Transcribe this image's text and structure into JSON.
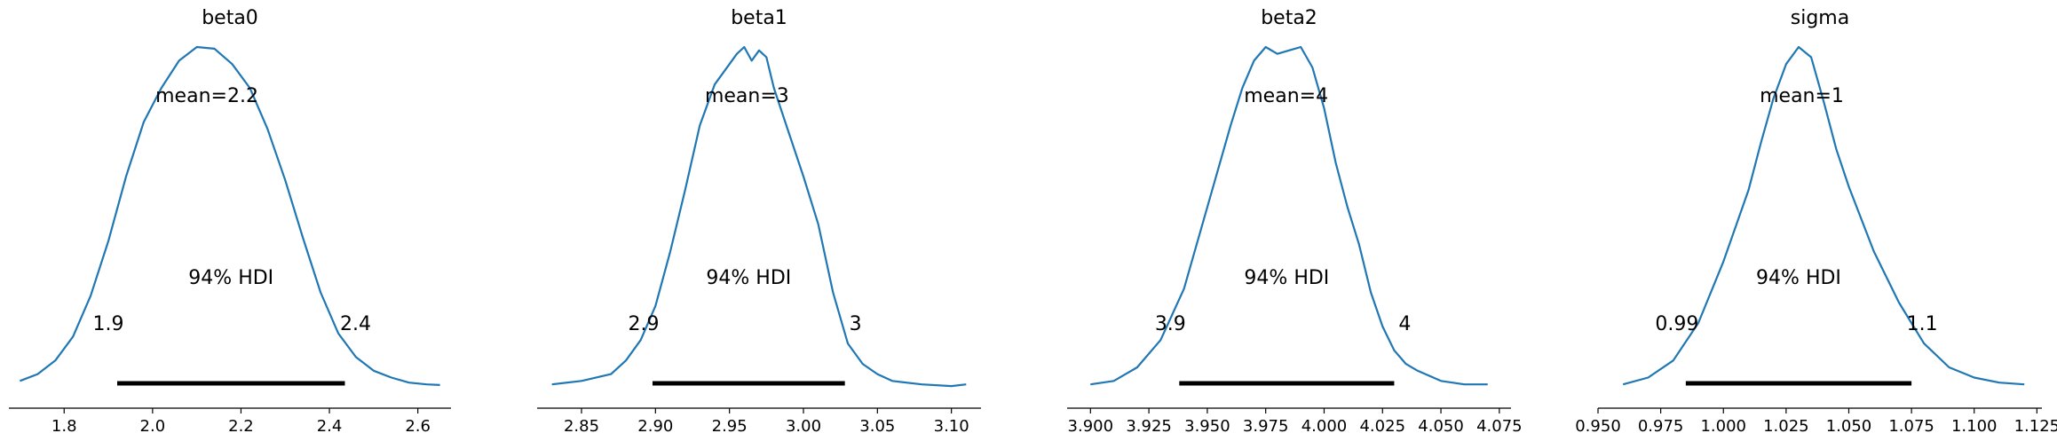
{
  "chart_data": [
    {
      "type": "area",
      "title": "beta0",
      "mean_label": "mean=2.2",
      "hdi_label": "94% HDI",
      "hdi_low_label": "1.9",
      "hdi_high_label": "2.4",
      "hdi": [
        1.92,
        2.435
      ],
      "xlim": [
        1.675,
        2.675
      ],
      "xticks": [
        1.8,
        2.0,
        2.2,
        2.4,
        2.6
      ],
      "xtick_labels": [
        "1.8",
        "2.0",
        "2.2",
        "2.4",
        "2.6"
      ],
      "x": [
        1.7,
        1.74,
        1.78,
        1.82,
        1.86,
        1.9,
        1.94,
        1.98,
        2.02,
        2.06,
        2.1,
        2.14,
        2.18,
        2.22,
        2.26,
        2.3,
        2.34,
        2.38,
        2.42,
        2.46,
        2.5,
        2.54,
        2.58,
        2.62,
        2.65
      ],
      "density": [
        0.02,
        0.04,
        0.08,
        0.15,
        0.27,
        0.43,
        0.62,
        0.78,
        0.88,
        0.96,
        1.0,
        0.995,
        0.95,
        0.88,
        0.76,
        0.61,
        0.44,
        0.28,
        0.16,
        0.09,
        0.05,
        0.03,
        0.015,
        0.01,
        0.008
      ]
    },
    {
      "type": "area",
      "title": "beta1",
      "mean_label": "mean=3",
      "hdi_label": "94% HDI",
      "hdi_low_label": "2.9",
      "hdi_high_label": "3",
      "hdi": [
        2.898,
        3.028
      ],
      "xlim": [
        2.82,
        3.12
      ],
      "xticks": [
        2.85,
        2.9,
        2.95,
        3.0,
        3.05,
        3.1
      ],
      "xtick_labels": [
        "2.85",
        "2.90",
        "2.95",
        "3.00",
        "3.05",
        "3.10"
      ],
      "x": [
        2.83,
        2.85,
        2.87,
        2.88,
        2.89,
        2.9,
        2.91,
        2.92,
        2.93,
        2.94,
        2.95,
        2.955,
        2.96,
        2.965,
        2.97,
        2.975,
        2.98,
        2.99,
        3.0,
        3.01,
        3.02,
        3.03,
        3.04,
        3.05,
        3.06,
        3.08,
        3.1,
        3.11
      ],
      "density": [
        0.01,
        0.02,
        0.04,
        0.08,
        0.14,
        0.24,
        0.4,
        0.58,
        0.77,
        0.89,
        0.95,
        0.98,
        1.0,
        0.96,
        0.99,
        0.97,
        0.88,
        0.75,
        0.62,
        0.48,
        0.28,
        0.13,
        0.07,
        0.04,
        0.02,
        0.01,
        0.005,
        0.01
      ]
    },
    {
      "type": "area",
      "title": "beta2",
      "mean_label": "mean=4",
      "hdi_label": "94% HDI",
      "hdi_low_label": "3.9",
      "hdi_high_label": "4",
      "hdi": [
        3.938,
        4.03
      ],
      "xlim": [
        3.89,
        4.08
      ],
      "xticks": [
        3.9,
        3.925,
        3.95,
        3.975,
        4.0,
        4.025,
        4.05,
        4.075
      ],
      "xtick_labels": [
        "3.900",
        "3.925",
        "3.950",
        "3.975",
        "4.000",
        "4.025",
        "4.050",
        "4.075"
      ],
      "x": [
        3.9,
        3.91,
        3.92,
        3.93,
        3.94,
        3.95,
        3.96,
        3.965,
        3.97,
        3.975,
        3.98,
        3.985,
        3.99,
        3.995,
        4.0,
        4.005,
        4.01,
        4.015,
        4.02,
        4.025,
        4.03,
        4.035,
        4.04,
        4.05,
        4.06,
        4.07
      ],
      "density": [
        0.01,
        0.02,
        0.06,
        0.14,
        0.29,
        0.53,
        0.77,
        0.88,
        0.96,
        1.0,
        0.98,
        0.99,
        1.0,
        0.94,
        0.82,
        0.66,
        0.53,
        0.42,
        0.28,
        0.18,
        0.11,
        0.07,
        0.05,
        0.02,
        0.01,
        0.01
      ]
    },
    {
      "type": "area",
      "title": "sigma",
      "mean_label": "mean=1",
      "hdi_label": "94% HDI",
      "hdi_low_label": "0.99",
      "hdi_high_label": "1.1",
      "hdi": [
        0.985,
        1.075
      ],
      "xlim": [
        0.95,
        1.127
      ],
      "xticks": [
        0.95,
        0.975,
        1.0,
        1.025,
        1.05,
        1.075,
        1.1,
        1.125
      ],
      "xtick_labels": [
        "0.950",
        "0.975",
        "1.000",
        "1.025",
        "1.050",
        "1.075",
        "1.100",
        "1.125"
      ],
      "x": [
        0.96,
        0.97,
        0.98,
        0.99,
        1.0,
        1.01,
        1.015,
        1.02,
        1.025,
        1.03,
        1.035,
        1.04,
        1.045,
        1.05,
        1.06,
        1.07,
        1.08,
        1.09,
        1.1,
        1.11,
        1.12
      ],
      "density": [
        0.01,
        0.03,
        0.08,
        0.19,
        0.37,
        0.58,
        0.72,
        0.85,
        0.95,
        1.0,
        0.97,
        0.84,
        0.7,
        0.59,
        0.4,
        0.25,
        0.13,
        0.06,
        0.03,
        0.015,
        0.01
      ]
    }
  ],
  "colors": {
    "curve": "#1f77b4",
    "hdi_bar": "#000000",
    "axis": "#000000"
  }
}
